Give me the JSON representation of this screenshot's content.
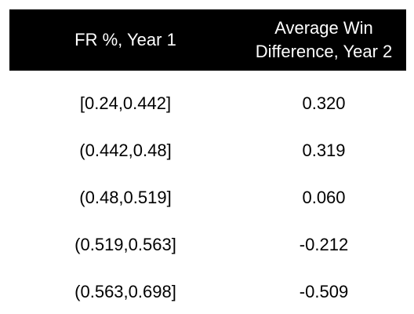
{
  "chart_data": {
    "type": "table",
    "columns": [
      [
        "FR %, Year 1"
      ],
      [
        "Average Win",
        "Difference, Year 2"
      ]
    ],
    "rows": [
      [
        "[0.24,0.442]",
        "0.320"
      ],
      [
        "(0.442,0.48]",
        "0.319"
      ],
      [
        "(0.48,0.519]",
        "0.060"
      ],
      [
        "(0.519,0.563]",
        "-0.212"
      ],
      [
        "(0.563,0.698]",
        "-0.509"
      ]
    ],
    "colors": {
      "header_bg": "#000000",
      "header_text": "#ffffff",
      "body_text": "#000000"
    }
  }
}
